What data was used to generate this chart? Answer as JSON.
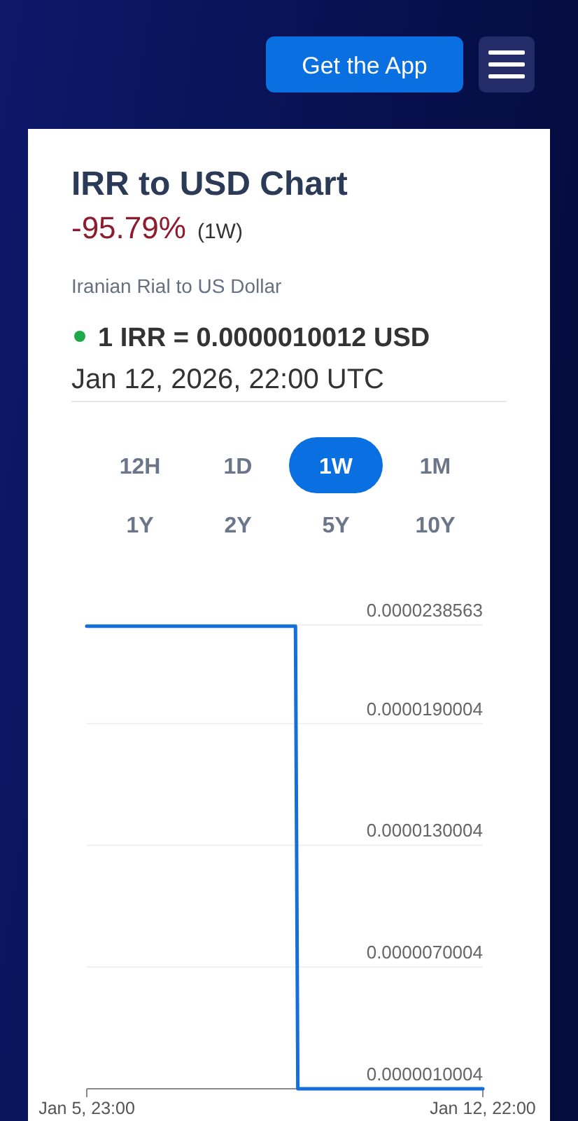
{
  "chart_data": {
    "type": "line",
    "title": "IRR to USD Chart",
    "subtitle": "Iranian Rial to US Dollar",
    "annotations": [
      "-95.79%",
      "(1W)",
      "1 IRR = 0.0000010012 USD",
      "Jan 12, 2026, 22:00 UTC",
      "Get the App",
      "12H",
      "1D",
      "1W",
      "1M",
      "1Y",
      "2Y",
      "5Y",
      "10Y"
    ],
    "x": [
      "2026-01-05T23:00",
      "2026-01-07T00:00",
      "2026-01-08T00:00",
      "2026-01-09T15:00",
      "2026-01-09T16:00",
      "2026-01-11T00:00",
      "2026-01-12T22:00"
    ],
    "series": [
      {
        "color": "#1470d8",
        "values": [
          2.38e-05,
          2.38e-05,
          2.38e-05,
          2.38e-05,
          1.0012e-06,
          1.0012e-06,
          1.0012e-06
        ]
      }
    ],
    "xlim": [
      "2026-01-05T23:00",
      "2026-01-12T22:00"
    ],
    "xticks": [
      {
        "value": "2026-01-05T23:00",
        "label": "Jan 5, 23:00"
      },
      {
        "value": "2026-01-12T22:00",
        "label": "Jan 12, 22:00"
      }
    ],
    "ylim": [
      1.0004e-06,
      2.38563e-05
    ],
    "yticks": [
      {
        "value": 1.0004e-06,
        "label": "0.0000010004"
      },
      {
        "value": 7.0004e-06,
        "label": "0.0000070004"
      },
      {
        "value": 1.30004e-05,
        "label": "0.0000130004"
      },
      {
        "value": 1.90004e-05,
        "label": "0.0000190004"
      },
      {
        "value": 2.38563e-05,
        "label": "0.0000238563"
      }
    ],
    "grid": "y"
  }
}
